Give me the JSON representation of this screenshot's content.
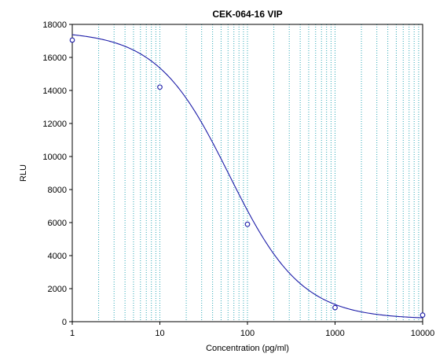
{
  "chart_data": {
    "type": "scatter",
    "title": "CEK-064-16 VIP",
    "xlabel": "Concentration (pg/ml)",
    "ylabel": "RLU",
    "x_scale": "log",
    "xlim": [
      1,
      10000
    ],
    "ylim": [
      0,
      18000
    ],
    "grid": "x-minor-dotted",
    "x_ticks": [
      1,
      10,
      100,
      1000,
      10000
    ],
    "x_tick_labels": [
      "1",
      "10",
      "100",
      "1000",
      "10000"
    ],
    "y_ticks": [
      0,
      2000,
      4000,
      6000,
      8000,
      10000,
      12000,
      14000,
      16000,
      18000
    ],
    "y_tick_labels": [
      "0",
      "2000",
      "4000",
      "6000",
      "8000",
      "10000",
      "12000",
      "14000",
      "16000",
      "18000"
    ],
    "points": [
      {
        "x": 1,
        "y": 17050
      },
      {
        "x": 10,
        "y": 14200
      },
      {
        "x": 100,
        "y": 5900
      },
      {
        "x": 1000,
        "y": 850
      },
      {
        "x": 10000,
        "y": 400
      }
    ],
    "fit_curve": {
      "model": "4PL",
      "top": 17600,
      "bottom": 150,
      "ec50": 62,
      "hill": 1.05
    },
    "colors": {
      "curve": "#1c1ca8",
      "points": "#1c1ca8",
      "grid": "#2aa7b5",
      "axis": "#000000"
    }
  }
}
